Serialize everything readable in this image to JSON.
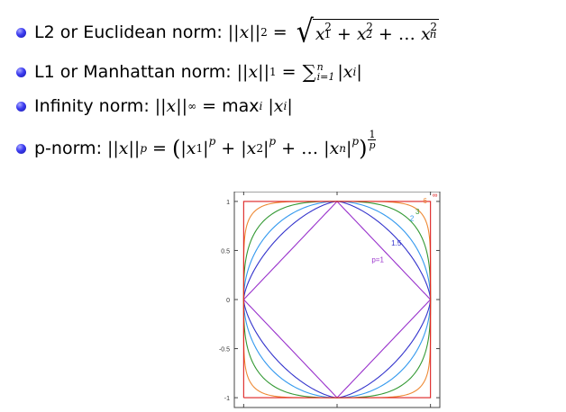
{
  "bullets": {
    "l2_label": "L2 or Euclidean norm:",
    "l1_label": "L1 or Manhattan norm:",
    "inf_label": "Infinity norm:",
    "p_label": "p-norm:"
  },
  "formulas": {
    "norm_var": "x",
    "sub_2": "2",
    "sub_1": "1",
    "sub_inf": "∞",
    "sub_p": "p",
    "sub_i": "i",
    "sub_n": "n",
    "sup_2": "2",
    "sum_top": "n",
    "sum_bottom": "i=1",
    "max_op": "max",
    "ellipsis": "…",
    "frac_num": "1",
    "frac_den": "p"
  },
  "chart_data": {
    "type": "line",
    "title": "",
    "xlim": [
      -1.1,
      1.1
    ],
    "ylim": [
      -1.1,
      1.1
    ],
    "x_ticks": [],
    "y_ticks": [
      "1",
      "0.5",
      "0",
      "-0.5",
      "-1"
    ],
    "y_tick_values": [
      1,
      0.5,
      0,
      -0.5,
      -1
    ],
    "grid": false,
    "series": [
      {
        "name": "p=1",
        "p": 1,
        "color": "#9932cc"
      },
      {
        "name": "1.5",
        "p": 1.5,
        "color": "#3333cc"
      },
      {
        "name": "2",
        "p": 2,
        "color": "#3399ee"
      },
      {
        "name": "3",
        "p": 3,
        "color": "#339933"
      },
      {
        "name": "6",
        "p": 6,
        "color": "#ee8833"
      },
      {
        "name": "∞",
        "p": "inf",
        "color": "#dd2222"
      }
    ],
    "annotations": [
      "p=1",
      "1.5",
      "2",
      "3",
      "6",
      "∞"
    ]
  }
}
